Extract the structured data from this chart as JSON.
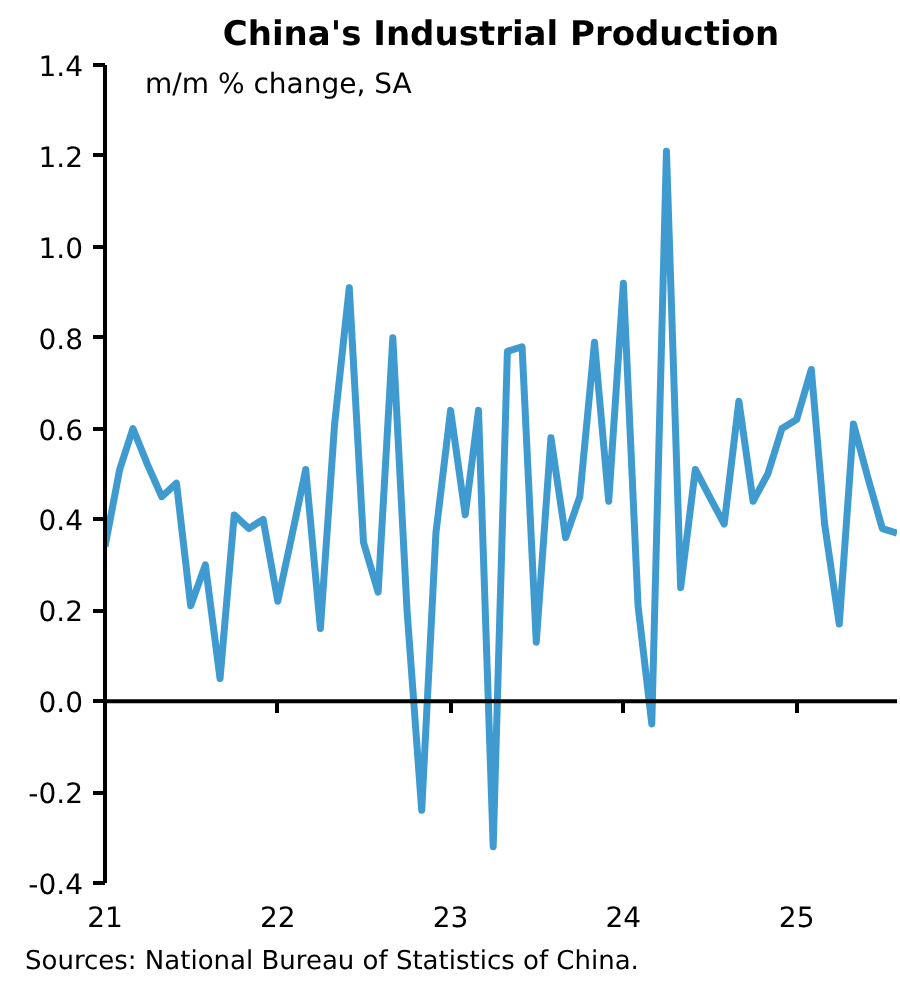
{
  "chart_data": {
    "type": "line",
    "title": "China's Industrial Production",
    "ylabel": "m/m % change, SA",
    "x": [
      "2021-01",
      "2021-02",
      "2021-03",
      "2021-04",
      "2021-05",
      "2021-06",
      "2021-07",
      "2021-08",
      "2021-09",
      "2021-10",
      "2021-11",
      "2021-12",
      "2022-01",
      "2022-02",
      "2022-03",
      "2022-04",
      "2022-05",
      "2022-06",
      "2022-07",
      "2022-08",
      "2022-09",
      "2022-10",
      "2022-11",
      "2022-12",
      "2023-01",
      "2023-02",
      "2023-03",
      "2023-04",
      "2023-05",
      "2023-06",
      "2023-07",
      "2023-08",
      "2023-09",
      "2023-10",
      "2023-11",
      "2023-12",
      "2024-01",
      "2024-02",
      "2024-03",
      "2024-04",
      "2024-05",
      "2024-06",
      "2024-07",
      "2024-08",
      "2024-09",
      "2024-10",
      "2024-11",
      "2024-12",
      "2025-01",
      "2025-02",
      "2025-03",
      "2025-04",
      "2025-05",
      "2025-06",
      "2025-07",
      "2025-08"
    ],
    "series": [
      {
        "color": "#3f9bcf",
        "values": [
          0.34,
          0.51,
          0.6,
          0.52,
          0.45,
          0.48,
          0.21,
          0.3,
          0.05,
          0.41,
          0.38,
          0.4,
          0.22,
          0.37,
          0.51,
          0.16,
          0.61,
          0.91,
          0.35,
          0.24,
          0.8,
          0.2,
          -0.24,
          0.37,
          0.64,
          0.41,
          0.64,
          -0.32,
          0.77,
          0.78,
          0.13,
          0.58,
          0.36,
          0.45,
          0.79,
          0.44,
          0.92,
          0.21,
          -0.05,
          1.21,
          0.25,
          0.51,
          0.45,
          0.39,
          0.66,
          0.44,
          0.5,
          0.6,
          0.62,
          0.73,
          0.39,
          0.17,
          0.61,
          0.49,
          0.38,
          0.37
        ]
      }
    ],
    "xlim": [
      "2021-01",
      "2025-08"
    ],
    "xticks": [
      {
        "value": "2021-01",
        "label": "21"
      },
      {
        "value": "2022-01",
        "label": "22"
      },
      {
        "value": "2023-01",
        "label": "23"
      },
      {
        "value": "2024-01",
        "label": "24"
      },
      {
        "value": "2025-01",
        "label": "25"
      }
    ],
    "ylim": [
      -0.4,
      1.4
    ],
    "yticks": [
      {
        "value": -0.4,
        "label": "-0.4"
      },
      {
        "value": -0.2,
        "label": "-0.2"
      },
      {
        "value": 0,
        "label": "0.0"
      },
      {
        "value": 0.2,
        "label": "0.2"
      },
      {
        "value": 0.4,
        "label": "0.4"
      },
      {
        "value": 0.6,
        "label": "0.6"
      },
      {
        "value": 0.8,
        "label": "0.8"
      },
      {
        "value": 1,
        "label": "1.0"
      },
      {
        "value": 1.2,
        "label": "1.2"
      },
      {
        "value": 1.4,
        "label": "1.4"
      }
    ],
    "ref_lines": [
      {
        "axis": "y",
        "value": 0
      }
    ],
    "annotations": [
      "Sources: National Bureau of Statistics of China."
    ]
  }
}
